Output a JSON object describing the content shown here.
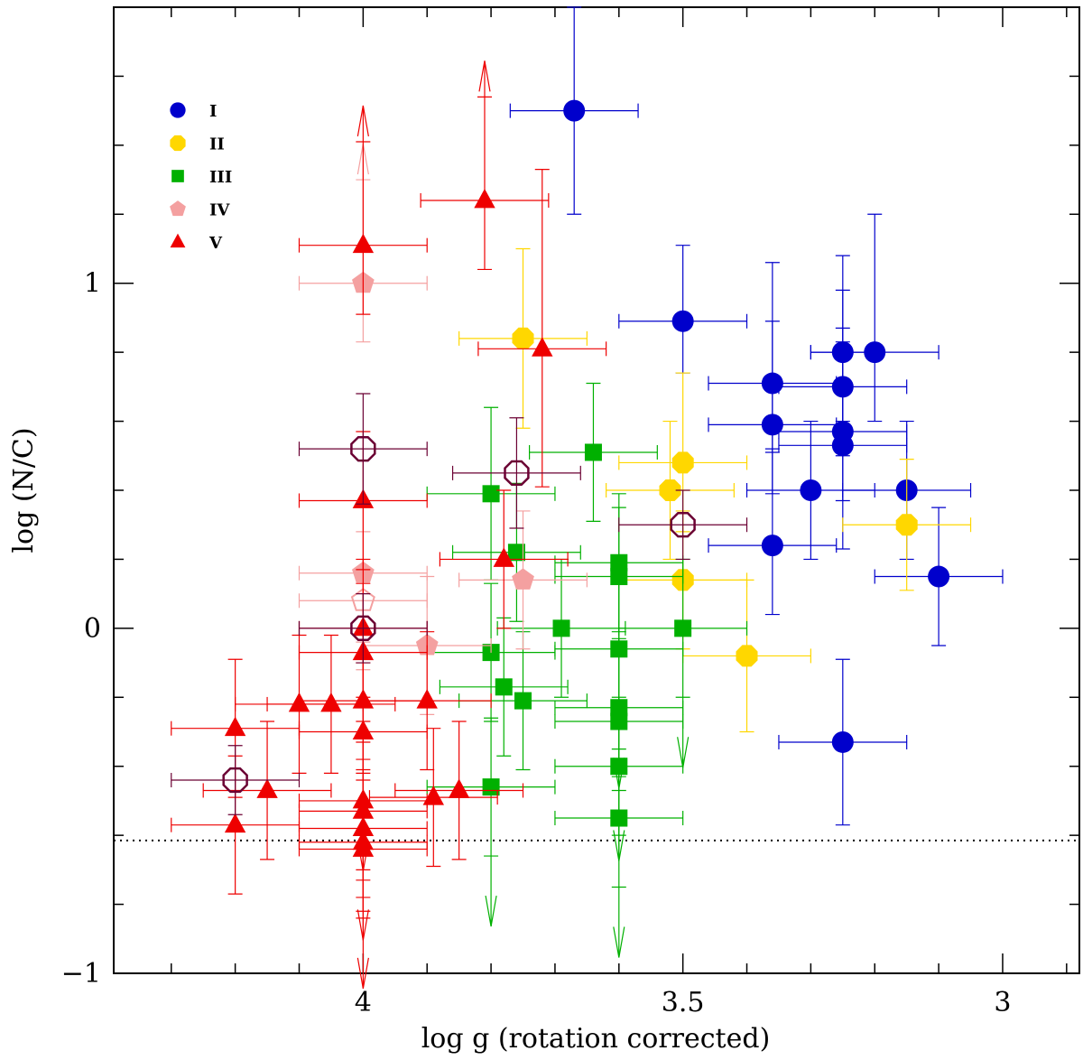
{
  "chart_data": {
    "type": "scatter",
    "xlabel": "log g (rotation corrected)",
    "ylabel": "log (N/C)",
    "x_reversed": true,
    "xlim": [
      4.39,
      2.88
    ],
    "ylim": [
      -1.0,
      1.8
    ],
    "x_ticks": [
      {
        "value": 4,
        "label": "4"
      },
      {
        "value": 3.5,
        "label": "3.5"
      },
      {
        "value": 3,
        "label": "3"
      }
    ],
    "y_ticks": [
      {
        "value": -1,
        "label": "−1"
      },
      {
        "value": 0,
        "label": "0"
      },
      {
        "value": 1,
        "label": "1"
      }
    ],
    "reference_line": {
      "y": -0.615,
      "style": "dotted"
    },
    "legend": {
      "position": "top-left"
    },
    "series": [
      {
        "name": "I",
        "marker": "circle",
        "color": "#0000cc",
        "points": [
          {
            "x": 3.67,
            "y": 1.5,
            "xerr": 0.1,
            "yerr": [
              0.3,
              0.3
            ]
          },
          {
            "x": 3.5,
            "y": 0.89,
            "xerr": 0.1,
            "yerr": [
              0.15,
              0.22
            ]
          },
          {
            "x": 3.36,
            "y": 0.71,
            "xerr": 0.1,
            "yerr": [
              0.2,
              0.35
            ]
          },
          {
            "x": 3.36,
            "y": 0.59,
            "xerr": 0.1,
            "yerr": [
              0.2,
              0.3
            ]
          },
          {
            "x": 3.36,
            "y": 0.24,
            "xerr": 0.1,
            "yerr": [
              0.2,
              0.28
            ]
          },
          {
            "x": 3.25,
            "y": 0.8,
            "xerr": 0.05,
            "yerr": [
              0.2,
              0.28
            ]
          },
          {
            "x": 3.25,
            "y": 0.7,
            "xerr": 0.1,
            "yerr": [
              0.2,
              0.28
            ]
          },
          {
            "x": 3.25,
            "y": 0.57,
            "xerr": 0.1,
            "yerr": [
              0.2,
              0.3
            ]
          },
          {
            "x": 3.25,
            "y": 0.53,
            "xerr": 0.1,
            "yerr": [
              0.3,
              0.3
            ]
          },
          {
            "x": 3.2,
            "y": 0.8,
            "xerr": 0.1,
            "yerr": [
              0.2,
              0.4
            ]
          },
          {
            "x": 3.3,
            "y": 0.4,
            "xerr": 0.1,
            "yerr": [
              0.2,
              0.2
            ]
          },
          {
            "x": 3.15,
            "y": 0.4,
            "xerr": 0.1,
            "yerr": [
              0.2,
              0.2
            ]
          },
          {
            "x": 3.1,
            "y": 0.15,
            "xerr": 0.1,
            "yerr": [
              0.2,
              0.2
            ]
          },
          {
            "x": 3.25,
            "y": -0.33,
            "xerr": 0.1,
            "yerr": [
              0.24,
              0.24
            ]
          }
        ]
      },
      {
        "name": "II",
        "marker": "octagon",
        "color": "#ffd700",
        "points": [
          {
            "x": 3.75,
            "y": 0.84,
            "xerr": 0.1,
            "yerr": [
              0.26,
              0.26
            ]
          },
          {
            "x": 3.5,
            "y": 0.48,
            "xerr": 0.1,
            "yerr": [
              0.2,
              0.26
            ]
          },
          {
            "x": 3.52,
            "y": 0.4,
            "xerr": 0.1,
            "yerr": [
              0.2,
              0.2
            ]
          },
          {
            "x": 3.5,
            "y": 0.14,
            "xerr": 0.1,
            "yerr": [
              0.2,
              0.2
            ]
          },
          {
            "x": 3.4,
            "y": -0.08,
            "xerr": 0.1,
            "yerr": [
              0.22,
              0.22
            ]
          },
          {
            "x": 3.15,
            "y": 0.3,
            "xerr": 0.1,
            "yerr": [
              0.19,
              0.19
            ]
          }
        ]
      },
      {
        "name": "III",
        "marker": "square",
        "color": "#00b000",
        "points": [
          {
            "x": 3.64,
            "y": 0.51,
            "xerr": 0.1,
            "yerr": [
              0.2,
              0.2
            ]
          },
          {
            "x": 3.8,
            "y": 0.39,
            "xerr": 0.1,
            "yerr": [
              0.25,
              0.25
            ]
          },
          {
            "x": 3.76,
            "y": 0.22,
            "xerr": 0.1,
            "yerr": [
              0.2,
              0.2
            ]
          },
          {
            "x": 3.6,
            "y": 0.19,
            "xerr": 0.1,
            "yerr": [
              0.2,
              0.2
            ]
          },
          {
            "x": 3.6,
            "y": 0.15,
            "xerr": 0.1,
            "yerr": [
              0.2,
              0.2
            ]
          },
          {
            "x": 3.69,
            "y": 0.0,
            "xerr": 0.1,
            "yerr": [
              0.2,
              0.2
            ]
          },
          {
            "x": 3.5,
            "y": 0.0,
            "xerr": 0.1,
            "yerr": [
              0.2,
              0.2
            ],
            "upper_limit": true
          },
          {
            "x": 3.8,
            "y": -0.07,
            "xerr": 0.1,
            "yerr": [
              0.2,
              0.2
            ]
          },
          {
            "x": 3.6,
            "y": -0.06,
            "xerr": 0.1,
            "yerr": [
              0.2,
              0.2
            ],
            "upper_limit": true
          },
          {
            "x": 3.78,
            "y": -0.17,
            "xerr": 0.1,
            "yerr": [
              0.2,
              0.2
            ]
          },
          {
            "x": 3.75,
            "y": -0.21,
            "xerr": 0.1,
            "yerr": [
              0.2,
              0.2
            ]
          },
          {
            "x": 3.6,
            "y": -0.23,
            "xerr": 0.1,
            "yerr": [
              0.2,
              0.2
            ]
          },
          {
            "x": 3.6,
            "y": -0.27,
            "xerr": 0.1,
            "yerr": [
              0.2,
              0.2
            ],
            "upper_limit": true
          },
          {
            "x": 3.6,
            "y": -0.4,
            "xerr": 0.1,
            "yerr": [
              0.2,
              0.2
            ]
          },
          {
            "x": 3.8,
            "y": -0.46,
            "xerr": 0.1,
            "yerr": [
              0.2,
              0.2
            ],
            "upper_limit": true
          },
          {
            "x": 3.6,
            "y": -0.55,
            "xerr": 0.1,
            "yerr": [
              0.2,
              0.2
            ],
            "upper_limit": true
          }
        ]
      },
      {
        "name": "IV",
        "marker": "pentagon",
        "color": "#f4a0a0",
        "points": [
          {
            "x": 4.0,
            "y": 1.0,
            "xerr": 0.1,
            "yerr": [
              0.17,
              0.3
            ],
            "lower_limit": true
          },
          {
            "x": 4.0,
            "y": 0.16,
            "xerr": 0.1,
            "yerr": [
              0.2,
              0.2
            ]
          },
          {
            "x": 4.0,
            "y": 0.08,
            "xerr": 0.1,
            "yerr": [
              0.2,
              0.2
            ],
            "hollow": true
          },
          {
            "x": 3.75,
            "y": 0.14,
            "xerr": 0.1,
            "yerr": [
              0.2,
              0.2
            ]
          },
          {
            "x": 3.9,
            "y": -0.05,
            "xerr": 0.1,
            "yerr": [
              0.2,
              0.2
            ]
          }
        ]
      },
      {
        "name": "V",
        "marker": "triangle",
        "color": "#ee0000",
        "points": [
          {
            "x": 3.81,
            "y": 1.24,
            "xerr": 0.1,
            "yerr": [
              0.2,
              0.3
            ],
            "lower_limit": true
          },
          {
            "x": 4.0,
            "y": 1.11,
            "xerr": 0.1,
            "yerr": [
              0.2,
              0.3
            ],
            "lower_limit": true
          },
          {
            "x": 3.72,
            "y": 0.81,
            "xerr": 0.1,
            "yerr": [
              0.4,
              0.52
            ]
          },
          {
            "x": 4.0,
            "y": 0.37,
            "xerr": 0.1,
            "yerr": [
              0.2,
              0.2
            ]
          },
          {
            "x": 3.78,
            "y": 0.2,
            "xerr": 0.1,
            "yerr": [
              0.2,
              0.2
            ]
          },
          {
            "x": 4.0,
            "y": 0.0,
            "xerr": 0.1,
            "yerr": [
              0.2,
              0.2
            ]
          },
          {
            "x": 4.0,
            "y": -0.07,
            "xerr": 0.1,
            "yerr": [
              0.2,
              0.2
            ]
          },
          {
            "x": 4.1,
            "y": -0.22,
            "xerr": 0.1,
            "yerr": [
              0.2,
              0.2
            ]
          },
          {
            "x": 4.05,
            "y": -0.22,
            "xerr": 0.1,
            "yerr": [
              0.2,
              0.2
            ]
          },
          {
            "x": 4.0,
            "y": -0.21,
            "xerr": 0.1,
            "yerr": [
              0.2,
              0.2
            ]
          },
          {
            "x": 3.9,
            "y": -0.21,
            "xerr": 0.1,
            "yerr": [
              0.2,
              0.2
            ]
          },
          {
            "x": 4.0,
            "y": -0.3,
            "xerr": 0.1,
            "yerr": [
              0.2,
              0.2
            ],
            "upper_limit": true
          },
          {
            "x": 4.2,
            "y": -0.29,
            "xerr": 0.1,
            "yerr": [
              0.2,
              0.2
            ]
          },
          {
            "x": 4.15,
            "y": -0.47,
            "xerr": 0.1,
            "yerr": [
              0.2,
              0.2
            ]
          },
          {
            "x": 3.85,
            "y": -0.47,
            "xerr": 0.1,
            "yerr": [
              0.2,
              0.2
            ]
          },
          {
            "x": 3.89,
            "y": -0.49,
            "xerr": 0.1,
            "yerr": [
              0.2,
              0.2
            ]
          },
          {
            "x": 4.0,
            "y": -0.5,
            "xerr": 0.1,
            "yerr": [
              0.2,
              0.2
            ],
            "upper_limit": true
          },
          {
            "x": 4.0,
            "y": -0.53,
            "xerr": 0.1,
            "yerr": [
              0.2,
              0.2
            ]
          },
          {
            "x": 4.0,
            "y": -0.58,
            "xerr": 0.1,
            "yerr": [
              0.2,
              0.2
            ]
          },
          {
            "x": 4.2,
            "y": -0.57,
            "xerr": 0.1,
            "yerr": [
              0.2,
              0.2
            ]
          },
          {
            "x": 4.0,
            "y": -0.62,
            "xerr": 0.1,
            "yerr": [
              0.2,
              0.2
            ]
          },
          {
            "x": 4.0,
            "y": -0.64,
            "xerr": 0.1,
            "yerr": [
              0.2,
              0.2
            ],
            "upper_limit": true
          }
        ]
      },
      {
        "marker": "open-octagon",
        "color": "#6b0033",
        "in_legend": false,
        "points": [
          {
            "x": 4.0,
            "y": 0.52,
            "xerr": 0.1,
            "yerr": [
              0.16,
              0.16
            ]
          },
          {
            "x": 3.76,
            "y": 0.45,
            "xerr": 0.1,
            "yerr": [
              0.16,
              0.16
            ]
          },
          {
            "x": 3.5,
            "y": 0.3,
            "xerr": 0.1,
            "yerr": [
              0.1,
              0.1
            ]
          },
          {
            "x": 4.0,
            "y": 0.0,
            "xerr": 0.1,
            "yerr": [
              0.1,
              0.1
            ]
          },
          {
            "x": 4.2,
            "y": -0.44,
            "xerr": 0.1,
            "yerr": [
              0.1,
              0.1
            ]
          }
        ]
      }
    ]
  }
}
